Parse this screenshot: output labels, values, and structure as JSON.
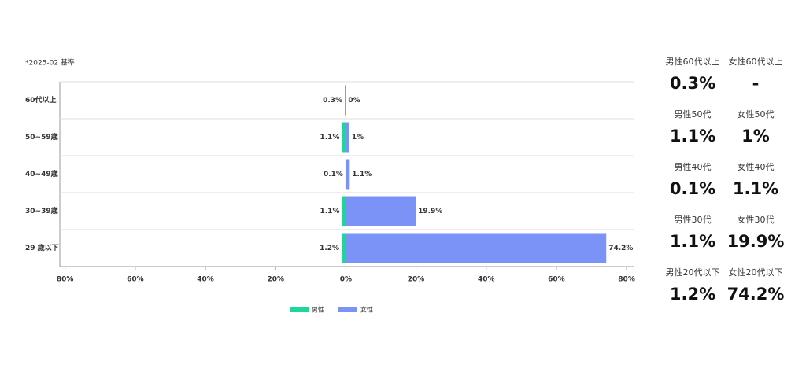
{
  "chart_data": {
    "type": "butterfly-bar",
    "note": "*2025-02 基準",
    "categories": [
      "60代以上",
      "50~59歳",
      "40~49歳",
      "30~39歳",
      "29 歳以下"
    ],
    "series": [
      {
        "name": "男性",
        "color": "#1fd59c",
        "values": [
          0.3,
          1.1,
          0.1,
          1.1,
          1.2
        ],
        "value_labels": [
          "0.3%",
          "1.1%",
          "0.1%",
          "1.1%",
          "1.2%"
        ]
      },
      {
        "name": "女性",
        "color": "#7b93f7",
        "values": [
          0,
          1,
          1.1,
          19.9,
          74.2
        ],
        "value_labels": [
          "0%",
          "1%",
          "1.1%",
          "19.9%",
          "74.2%"
        ]
      }
    ],
    "xlim": [
      -81.5,
      82
    ],
    "xticks": [
      {
        "value": -80,
        "label": "80%"
      },
      {
        "value": -60,
        "label": "60%"
      },
      {
        "value": -40,
        "label": "40%"
      },
      {
        "value": -20,
        "label": "20%"
      },
      {
        "value": 0,
        "label": "0%"
      },
      {
        "value": 20,
        "label": "20%"
      },
      {
        "value": 40,
        "label": "40%"
      },
      {
        "value": 60,
        "label": "60%"
      },
      {
        "value": 80,
        "label": "80%"
      }
    ]
  },
  "stats": [
    {
      "label": "男性60代以上",
      "value": "0.3%"
    },
    {
      "label": "女性60代以上",
      "value": "-"
    },
    {
      "label": "男性50代",
      "value": "1.1%"
    },
    {
      "label": "女性50代",
      "value": "1%"
    },
    {
      "label": "男性40代",
      "value": "0.1%"
    },
    {
      "label": "女性40代",
      "value": "1.1%"
    },
    {
      "label": "男性30代",
      "value": "1.1%"
    },
    {
      "label": "女性30代",
      "value": "19.9%"
    },
    {
      "label": "男性20代以下",
      "value": "1.2%"
    },
    {
      "label": "女性20代以下",
      "value": "74.2%"
    }
  ]
}
